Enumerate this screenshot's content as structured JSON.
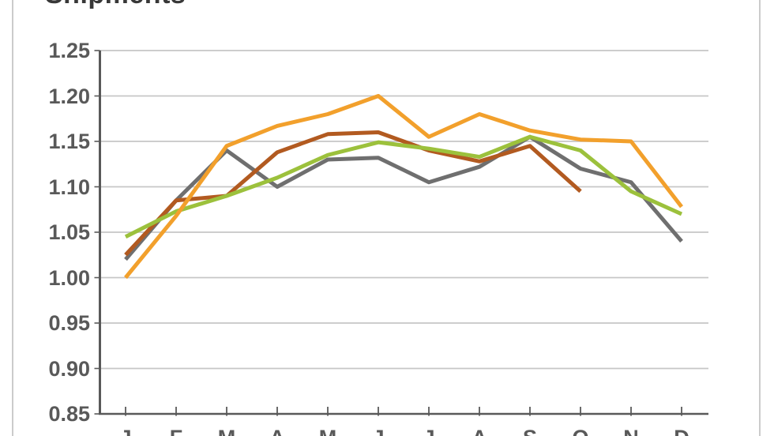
{
  "chart_data": {
    "type": "line",
    "title": "Shipments",
    "categories": [
      "J",
      "F",
      "M",
      "A",
      "M",
      "J",
      "J",
      "A",
      "S",
      "O",
      "N",
      "D"
    ],
    "y_tick_labels": [
      "1.25",
      "1.20",
      "1.15",
      "1.10",
      "1.05",
      "1.00",
      "0.95",
      "0.90",
      "0.85"
    ],
    "y_tick_values": [
      1.25,
      1.2,
      1.15,
      1.1,
      1.05,
      1.0,
      0.95,
      0.9,
      0.85
    ],
    "ylim": [
      0.85,
      1.25
    ],
    "grid": true,
    "legend_position": "none-visible",
    "series": [
      {
        "name": "gray-series",
        "color": "#6F6F6F",
        "values": [
          1.02,
          1.085,
          1.14,
          1.1,
          1.13,
          1.132,
          1.105,
          1.122,
          1.155,
          1.12,
          1.105,
          1.04
        ]
      },
      {
        "name": "rust-series",
        "color": "#B25A20",
        "values": [
          1.025,
          1.085,
          1.09,
          1.138,
          1.158,
          1.16,
          1.14,
          1.128,
          1.145,
          1.095,
          null,
          null
        ]
      },
      {
        "name": "green-series",
        "color": "#9CC13C",
        "values": [
          1.045,
          1.073,
          1.09,
          1.11,
          1.135,
          1.149,
          1.142,
          1.133,
          1.155,
          1.14,
          1.095,
          1.07
        ]
      },
      {
        "name": "orange-series",
        "color": "#F2A02C",
        "values": [
          1.0,
          1.068,
          1.145,
          1.167,
          1.18,
          1.2,
          1.155,
          1.18,
          1.162,
          1.152,
          1.15,
          1.078
        ]
      }
    ]
  },
  "style_colors": {
    "gridline": "#C6C6C6",
    "axis": "#595959",
    "tick": "#595959",
    "labels": "#595959",
    "title": "#383838",
    "panel_border": "#CBCBCB"
  }
}
